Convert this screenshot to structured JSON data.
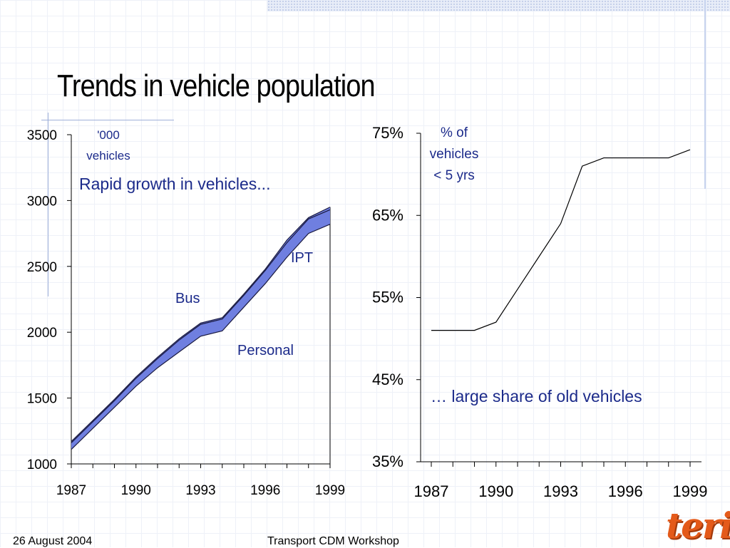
{
  "slide": {
    "title": "Trends in vehicle population",
    "footer_date": "26 August 2004",
    "footer_event": "Transport CDM Workshop",
    "logo_text": "teri"
  },
  "colors": {
    "bus_fill": "#6f7fe0",
    "line": "#000000",
    "note_text": "#1b2a8a"
  },
  "chart_data": [
    {
      "type": "area",
      "ylabel": "'000 vehicles",
      "annotation": "Rapid growth in vehicles...",
      "x": [
        1987,
        1988,
        1989,
        1990,
        1991,
        1992,
        1993,
        1994,
        1995,
        1996,
        1997,
        1998,
        1999
      ],
      "x_ticks": [
        "1987",
        "1990",
        "1993",
        "1996",
        "1999"
      ],
      "y_ticks": [
        "1000",
        "1500",
        "2000",
        "2500",
        "3000",
        "3500"
      ],
      "ylim": [
        1000,
        3500
      ],
      "stacked_boundaries": [
        {
          "name": "Personal",
          "values": [
            1110,
            1270,
            1430,
            1590,
            1730,
            1850,
            1970,
            2010,
            2190,
            2370,
            2570,
            2750,
            2820
          ]
        },
        {
          "name": "Bus",
          "values": [
            1160,
            1320,
            1480,
            1650,
            1800,
            1940,
            2060,
            2100,
            2280,
            2470,
            2680,
            2860,
            2930
          ]
        },
        {
          "name": "IPT",
          "values": [
            1170,
            1330,
            1490,
            1660,
            1810,
            1950,
            2070,
            2110,
            2290,
            2480,
            2700,
            2870,
            2950
          ]
        }
      ],
      "series_labels": [
        "Personal",
        "Bus",
        "IPT"
      ]
    },
    {
      "type": "line",
      "ylabel": "% of vehicles < 5 yrs",
      "annotation": "… large share of old vehicles",
      "x": [
        1987,
        1988,
        1989,
        1990,
        1991,
        1992,
        1993,
        1994,
        1995,
        1996,
        1997,
        1998,
        1999
      ],
      "values": [
        51,
        51,
        51,
        52,
        56,
        60,
        64,
        71,
        72,
        72,
        72,
        72,
        73
      ],
      "x_ticks": [
        "1987",
        "1990",
        "1993",
        "1996",
        "1999"
      ],
      "y_ticks": [
        "35%",
        "45%",
        "55%",
        "65%",
        "75%"
      ],
      "ylim": [
        35,
        75
      ]
    }
  ]
}
